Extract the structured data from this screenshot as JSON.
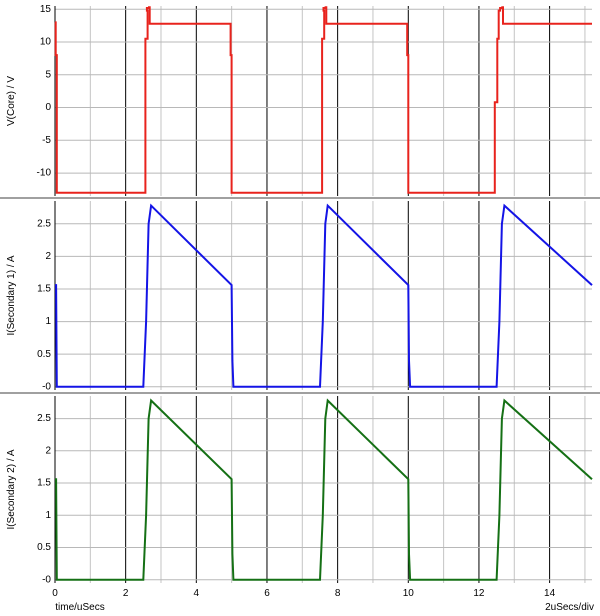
{
  "footer": {
    "x_label": "time/uSecs",
    "x_scale": "2uSecs/div"
  },
  "chart_data": [
    {
      "type": "line",
      "ylabel": "V(Core) / V",
      "ylim": [
        -13.5,
        15.5
      ],
      "yticks": [
        -10,
        -5,
        0,
        5,
        10,
        15
      ],
      "ytick_labels": [
        "-10",
        "-5",
        "0",
        "5",
        "10",
        "15"
      ],
      "xlim": [
        0,
        15.2
      ],
      "grid": true,
      "series": [
        {
          "color": "#e8231d",
          "x": [
            0,
            0.02,
            0.02,
            0.05,
            0.05,
            2.56,
            2.56,
            2.62,
            2.62,
            2.6,
            2.6,
            2.66,
            2.66,
            2.68,
            2.68,
            2.72,
            2.72,
            4.97,
            4.97,
            5.0,
            5.0,
            7.56,
            7.56,
            7.62,
            7.62,
            7.6,
            7.6,
            7.66,
            7.66,
            7.68,
            7.68,
            7.72,
            7.72,
            9.97,
            9.97,
            10.0,
            10.0,
            12.45,
            12.45,
            12.52,
            12.52,
            12.56,
            12.56,
            12.6,
            12.6,
            12.66,
            12.66,
            12.68,
            12.68,
            12.72,
            12.72,
            15.2
          ],
          "y": [
            13.0,
            13.0,
            8.0,
            8.0,
            -13.0,
            -13.0,
            10.5,
            10.5,
            14.8,
            14.8,
            15.2,
            15.2,
            15.3,
            15.3,
            12.8,
            12.8,
            12.8,
            12.8,
            8.0,
            8.0,
            -13.0,
            -13.0,
            10.5,
            10.5,
            14.8,
            14.8,
            15.2,
            15.2,
            15.3,
            15.3,
            12.8,
            12.8,
            12.8,
            12.8,
            8.0,
            8.0,
            -13.0,
            -13.0,
            0.8,
            0.8,
            10.5,
            10.5,
            14.8,
            14.8,
            15.2,
            15.2,
            15.3,
            15.3,
            12.8,
            12.8,
            12.8,
            12.8
          ]
        }
      ]
    },
    {
      "type": "line",
      "ylabel": "I(Secondary 1) / A",
      "ylim": [
        -0.05,
        2.85
      ],
      "yticks": [
        0,
        0.5,
        1,
        1.5,
        2,
        2.5
      ],
      "ytick_labels": [
        "-0",
        "0.5",
        "1",
        "1.5",
        "2",
        "2.5"
      ],
      "xlim": [
        0,
        15.2
      ],
      "grid": true,
      "series": [
        {
          "color": "#1414e6",
          "x": [
            0,
            0.03,
            0.05,
            2.5,
            2.58,
            2.65,
            2.72,
            5.0,
            5.02,
            5.05,
            7.5,
            7.58,
            7.65,
            7.72,
            10.0,
            10.02,
            10.05,
            12.5,
            12.58,
            12.65,
            12.72,
            15.2
          ],
          "y": [
            1.56,
            1.56,
            0.0,
            0.0,
            1.0,
            2.5,
            2.78,
            1.56,
            0.4,
            0.0,
            0.0,
            1.0,
            2.5,
            2.78,
            1.56,
            0.4,
            0.0,
            0.0,
            1.0,
            2.5,
            2.78,
            1.56
          ]
        }
      ]
    },
    {
      "type": "line",
      "ylabel": "I(Secondary 2) / A",
      "ylim": [
        -0.05,
        2.85
      ],
      "yticks": [
        0,
        0.5,
        1,
        1.5,
        2,
        2.5
      ],
      "ytick_labels": [
        "-0",
        "0.5",
        "1",
        "1.5",
        "2",
        "2.5"
      ],
      "xlim": [
        0,
        15.2
      ],
      "xticks": [
        0,
        2,
        4,
        6,
        8,
        10,
        12,
        14
      ],
      "xtick_labels": [
        "0",
        "2",
        "4",
        "6",
        "8",
        "10",
        "12",
        "14"
      ],
      "grid": true,
      "series": [
        {
          "color": "#157015",
          "x": [
            0,
            0.03,
            0.05,
            2.5,
            2.58,
            2.65,
            2.72,
            5.0,
            5.02,
            5.05,
            7.5,
            7.58,
            7.65,
            7.72,
            10.0,
            10.02,
            10.05,
            12.5,
            12.58,
            12.65,
            12.72,
            15.2
          ],
          "y": [
            1.56,
            1.56,
            0.0,
            0.0,
            1.0,
            2.5,
            2.78,
            1.56,
            0.4,
            0.0,
            0.0,
            1.0,
            2.5,
            2.78,
            1.56,
            0.4,
            0.0,
            0.0,
            1.0,
            2.5,
            2.78,
            1.56
          ]
        }
      ]
    }
  ]
}
